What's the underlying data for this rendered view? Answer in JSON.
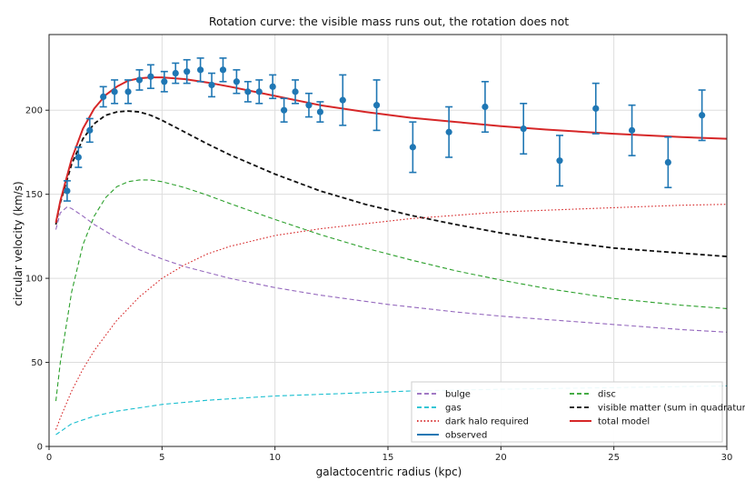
{
  "chart_data": {
    "type": "line",
    "title": "Rotation curve: the visible mass runs out, the rotation does not",
    "xlabel": "galactocentric radius (kpc)",
    "ylabel": "circular velocity (km/s)",
    "xlim": [
      0,
      30
    ],
    "ylim": [
      0,
      245
    ],
    "xticks": [
      0,
      5,
      10,
      15,
      20,
      25,
      30
    ],
    "yticks": [
      0,
      50,
      100,
      150,
      200
    ],
    "grid": true,
    "legend_position": "lower-right",
    "series": [
      {
        "name": "bulge",
        "style": "dashed",
        "color": "#9467bd",
        "x": [
          0.3,
          0.5,
          0.8,
          1.0,
          1.5,
          2.0,
          3.0,
          4.0,
          5.0,
          6.0,
          8.0,
          10.0,
          12.0,
          15.0,
          18.0,
          20.0,
          22.0,
          25.0,
          28.0,
          30.0
        ],
        "y": [
          129,
          139,
          142.5,
          141.5,
          137,
          132,
          124,
          117,
          111.5,
          107,
          100,
          94.5,
          90,
          84.5,
          80,
          77.5,
          75.5,
          72.5,
          69.5,
          68
        ]
      },
      {
        "name": "disc",
        "style": "dashed",
        "color": "#2ca02c",
        "x": [
          0.3,
          0.5,
          1.0,
          1.5,
          2.0,
          2.5,
          3.0,
          3.5,
          4.0,
          4.5,
          5.0,
          6.0,
          7.0,
          8.0,
          10.0,
          12.0,
          14.0,
          16.0,
          18.0,
          20.0,
          22.0,
          25.0,
          28.0,
          30.0
        ],
        "y": [
          27,
          50,
          92,
          120,
          137,
          148,
          154.5,
          157.5,
          158.5,
          158.5,
          157.5,
          154,
          149.5,
          144.5,
          135,
          126,
          118,
          111,
          104.5,
          99,
          94,
          88,
          84,
          82
        ]
      },
      {
        "name": "gas",
        "style": "dashed",
        "color": "#17becf",
        "x": [
          0.3,
          1.0,
          2.0,
          3.0,
          4.0,
          5.0,
          7.0,
          10.0,
          13.0,
          16.0,
          20.0,
          25.0,
          30.0
        ],
        "y": [
          7,
          13.5,
          18,
          21,
          23,
          25,
          27.5,
          30,
          31.5,
          33,
          34,
          35,
          36
        ]
      },
      {
        "name": "visible matter (sum in quadrature)",
        "style": "dashed",
        "color": "#111111",
        "x": [
          0.3,
          0.5,
          1.0,
          1.5,
          2.0,
          2.5,
          3.0,
          3.5,
          4.0,
          4.5,
          5.0,
          6.0,
          7.0,
          8.0,
          10.0,
          12.0,
          14.0,
          16.0,
          18.0,
          20.0,
          22.0,
          25.0,
          28.0,
          30.0
        ],
        "y": [
          132,
          145,
          168,
          183,
          192,
          197,
          199,
          199.5,
          199,
          197,
          194,
          187,
          180,
          173.5,
          162,
          152,
          144,
          137.5,
          132,
          127,
          123,
          118,
          115,
          113
        ]
      },
      {
        "name": "dark halo required",
        "style": "dotted",
        "color": "#d62728",
        "x": [
          0.3,
          0.5,
          1.0,
          1.5,
          2.0,
          3.0,
          4.0,
          5.0,
          6.0,
          7.0,
          8.0,
          10.0,
          12.0,
          14.0,
          16.0,
          18.0,
          20.0,
          22.0,
          25.0,
          28.0,
          30.0
        ],
        "y": [
          10,
          17,
          33,
          46,
          57,
          75,
          89,
          100,
          108,
          114.5,
          119,
          125.5,
          129.5,
          132.5,
          135.5,
          137.5,
          139.5,
          140.5,
          142,
          143.5,
          144
        ]
      },
      {
        "name": "total model",
        "style": "solid",
        "color": "#d62728",
        "x": [
          0.3,
          0.5,
          1.0,
          1.5,
          2.0,
          2.5,
          3.0,
          3.5,
          4.0,
          4.5,
          5.0,
          6.0,
          7.0,
          8.0,
          10.0,
          12.0,
          14.0,
          16.0,
          18.0,
          20.0,
          22.0,
          25.0,
          28.0,
          30.0
        ],
        "y": [
          133,
          146,
          171,
          189,
          201,
          209,
          214,
          217.5,
          219,
          219.5,
          219.5,
          218.5,
          216.5,
          214,
          208.5,
          203,
          199,
          195.5,
          193,
          190.5,
          188.5,
          186,
          184,
          183
        ]
      }
    ],
    "observed": {
      "name": "observed",
      "color": "#1f77b4",
      "x": [
        0.8,
        1.3,
        1.8,
        2.4,
        2.9,
        3.5,
        4.0,
        4.5,
        5.1,
        5.6,
        6.1,
        6.7,
        7.2,
        7.7,
        8.3,
        8.8,
        9.3,
        9.9,
        10.4,
        10.9,
        11.5,
        12.0,
        13.0,
        14.5,
        16.1,
        17.7,
        19.3,
        21.0,
        22.6,
        24.2,
        25.8,
        27.4,
        28.9
      ],
      "y": [
        152,
        172,
        188,
        208,
        211,
        211,
        218,
        220,
        217,
        222,
        223,
        224,
        215,
        224,
        217,
        211,
        211,
        214,
        200,
        211,
        203,
        199,
        206,
        203,
        178,
        187,
        202,
        189,
        170,
        201,
        188,
        169,
        197
      ],
      "err": [
        6,
        6,
        7,
        6,
        7,
        7,
        6,
        7,
        6,
        6,
        7,
        7,
        7,
        7,
        7,
        6,
        7,
        7,
        7,
        7,
        7,
        6,
        15,
        15,
        15,
        15,
        15,
        15,
        15,
        15,
        15,
        15,
        15
      ]
    }
  }
}
